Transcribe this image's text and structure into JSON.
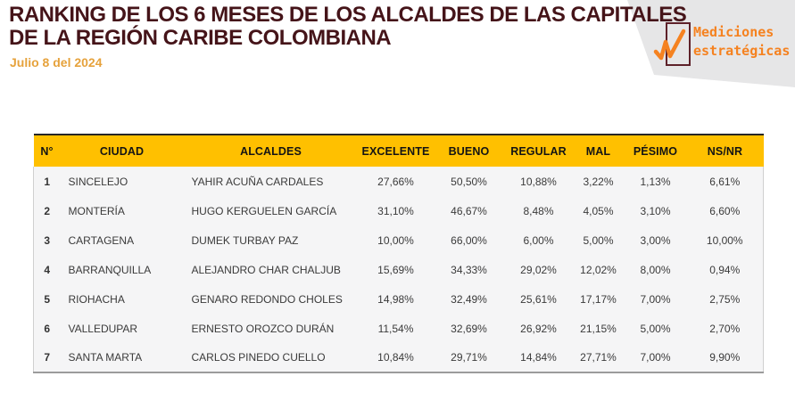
{
  "page": {
    "title_line1": "RANKING DE LOS 6 MESES DE LOS ALCALDES DE LAS CAPITALES",
    "title_line2": "DE LA REGIÓN CARIBE COLOMBIANA",
    "date": "Julio 8 del 2024"
  },
  "logo": {
    "line1": "Mediciones",
    "line2": "estratégicas",
    "icon": "checkmark-pulse-icon"
  },
  "table": {
    "columns": [
      "N°",
      "CIUDAD",
      "ALCALDES",
      "EXCELENTE",
      "BUENO",
      "REGULAR",
      "MAL",
      "PÉSIMO",
      "NS/NR"
    ],
    "rows": [
      [
        "1",
        "SINCELEJO",
        "YAHIR ACUÑA CARDALES",
        "27,66%",
        "50,50%",
        "10,88%",
        "3,22%",
        "1,13%",
        "6,61%"
      ],
      [
        "2",
        "MONTERÍA",
        "HUGO KERGUELEN GARCÍA",
        "31,10%",
        "46,67%",
        "8,48%",
        "4,05%",
        "3,10%",
        "6,60%"
      ],
      [
        "3",
        "CARTAGENA",
        "DUMEK TURBAY PAZ",
        "10,00%",
        "66,00%",
        "6,00%",
        "5,00%",
        "3,00%",
        "10,00%"
      ],
      [
        "4",
        "BARRANQUILLA",
        "ALEJANDRO CHAR CHALJUB",
        "15,69%",
        "34,33%",
        "29,02%",
        "12,02%",
        "8,00%",
        "0,94%"
      ],
      [
        "5",
        "RIOHACHA",
        "GENARO REDONDO CHOLES",
        "14,98%",
        "32,49%",
        "25,61%",
        "17,17%",
        "7,00%",
        "2,75%"
      ],
      [
        "6",
        "VALLEDUPAR",
        "ERNESTO OROZCO DURÁN",
        "11,54%",
        "32,69%",
        "26,92%",
        "21,15%",
        "5,00%",
        "2,70%"
      ],
      [
        "7",
        "SANTA MARTA",
        "CARLOS PINEDO CUELLO",
        "10,84%",
        "29,71%",
        "14,84%",
        "27,71%",
        "7,00%",
        "9,90%"
      ]
    ]
  },
  "colors": {
    "title": "#451419",
    "date": "#E6A23C",
    "header_bg": "#FFC000",
    "header_text": "#141414",
    "body_text": "#3A3A3A",
    "body_bg": "#F5F5F6",
    "logo_orange": "#F58220",
    "logo_box": "#5E2129",
    "logo_polygon_bg": "#E6E6E7"
  }
}
